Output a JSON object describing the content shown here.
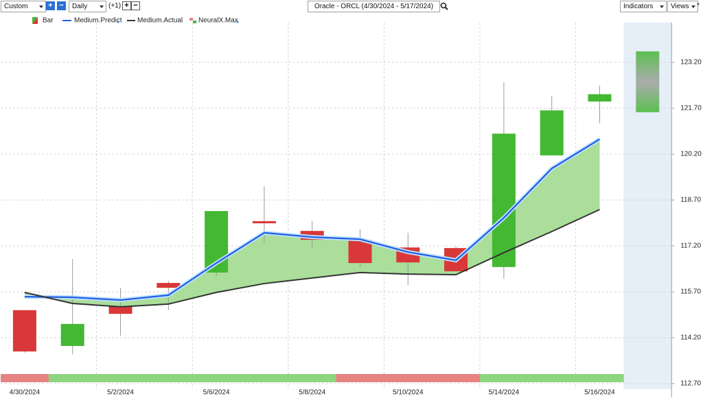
{
  "toolbar": {
    "mode": "Custom",
    "period": "Daily",
    "offset": "(+1)",
    "symbol": "Oracle - ORCL (4/30/2024 - 5/17/2024)",
    "indicators": "Indicators",
    "views": "Views",
    "pin": "*"
  },
  "chart_data": {
    "type": "candlestick",
    "categories": [
      "4/30/2024",
      null,
      "5/2/2024",
      null,
      "5/6/2024",
      null,
      "5/8/2024",
      null,
      "5/10/2024",
      null,
      "5/14/2024",
      null,
      "5/16/2024",
      null
    ],
    "ylim": [
      112.52,
      124.5
    ],
    "yticks": [
      {
        "value": 112.7,
        "label": "112.70"
      },
      {
        "value": 114.2,
        "label": "114.20"
      },
      {
        "value": 115.7,
        "label": "115.70"
      },
      {
        "value": 117.2,
        "label": "117.20"
      },
      {
        "value": 118.7,
        "label": "118.70"
      },
      {
        "value": 120.2,
        "label": "120.20"
      },
      {
        "value": 121.7,
        "label": "121.70"
      },
      {
        "value": 123.2,
        "label": "123.20"
      }
    ],
    "grid": true,
    "series": [
      {
        "name": "Bar",
        "up_color": "#44b833",
        "down_color": "#d93838",
        "open": [
          115.1,
          113.93,
          115.23,
          115.99,
          116.33,
          118.01,
          117.69,
          117.4,
          117.15,
          117.13,
          116.51,
          120.16,
          121.92,
          null
        ],
        "high": [
          115.1,
          116.77,
          115.83,
          116.06,
          118.34,
          119.15,
          118.01,
          117.74,
          117.63,
          117.18,
          122.55,
          122.1,
          122.44,
          null
        ],
        "low": [
          113.71,
          113.66,
          114.27,
          115.1,
          116.21,
          117.29,
          117.11,
          116.51,
          115.92,
          116.37,
          116.13,
          120.16,
          121.21,
          null
        ],
        "close": [
          113.75,
          114.65,
          114.98,
          115.83,
          118.34,
          117.94,
          117.4,
          116.64,
          116.66,
          116.37,
          120.87,
          121.63,
          122.16,
          null
        ],
        "forecast_low": 121.57,
        "forecast_high": 123.56
      },
      {
        "name": "Medium.Predict",
        "color": "#1f5fe0",
        "values": [
          115.54,
          115.52,
          115.43,
          115.59,
          116.64,
          117.63,
          117.49,
          117.42,
          117.0,
          116.73,
          118.12,
          119.73,
          120.69,
          null
        ]
      },
      {
        "name": "Medium.Actual",
        "color": "#333333",
        "values": [
          115.68,
          115.32,
          115.21,
          115.3,
          115.68,
          115.97,
          116.15,
          116.33,
          116.28,
          116.26,
          116.98,
          117.67,
          118.39,
          null
        ]
      },
      {
        "name": "NeuralX.Max",
        "up_color": "#8fd47f",
        "down_color": "#e88383",
        "values": [
          "down",
          "up",
          "up",
          "up",
          "up",
          "up",
          "up",
          "down",
          "down",
          "down",
          "up",
          "up",
          "up",
          null
        ]
      }
    ],
    "fill_color": "#a5dc95"
  }
}
